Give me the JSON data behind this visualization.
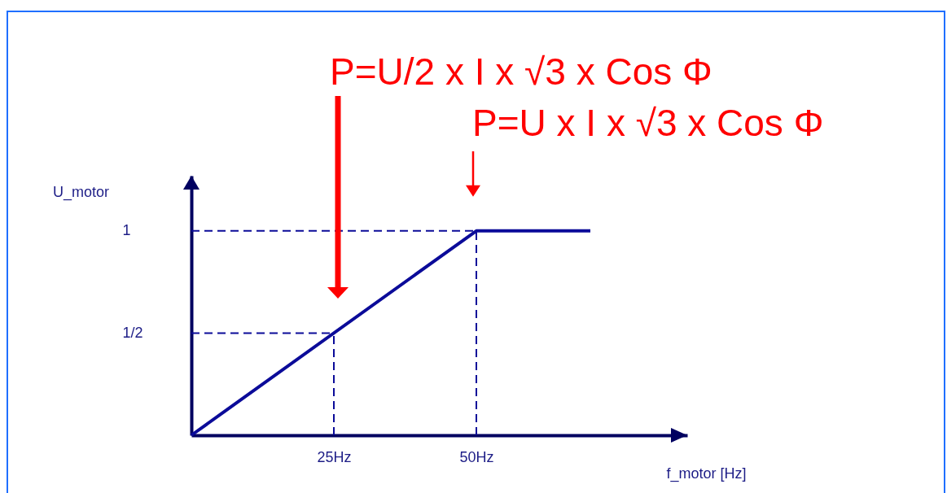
{
  "chart_data": {
    "type": "line",
    "xlabel": "f_motor [Hz]",
    "ylabel": "U_motor",
    "x": [
      0,
      50,
      70
    ],
    "series": [
      {
        "color": "#0b0b99",
        "values": [
          0,
          1,
          1
        ]
      }
    ],
    "xlim": [
      0,
      87
    ],
    "ylim": [
      0,
      1.27
    ],
    "xticks": [
      {
        "value": 25,
        "label": "25Hz"
      },
      {
        "value": 50,
        "label": "50Hz"
      }
    ],
    "yticks": [
      {
        "value": 0.5,
        "label": "1/2"
      },
      1
    ],
    "ref_lines": [
      {
        "axis": "y",
        "value": 1,
        "color": "#0b0b99",
        "line_style": "dashed"
      },
      {
        "axis": "y",
        "value": 0.5,
        "color": "#0b0b99",
        "line_style": "dashed"
      },
      {
        "axis": "x",
        "value": 25,
        "color": "#0b0b99",
        "line_style": "dashed"
      },
      {
        "axis": "x",
        "value": 50,
        "color": "#0b0b99",
        "line_style": "dashed"
      }
    ],
    "annotations": [
      "P=U/2 x I x √3 x Cos Φ",
      {
        "text": "P=U x I x √3 x Cos Φ",
        "x": 50,
        "y": 1
      }
    ]
  }
}
